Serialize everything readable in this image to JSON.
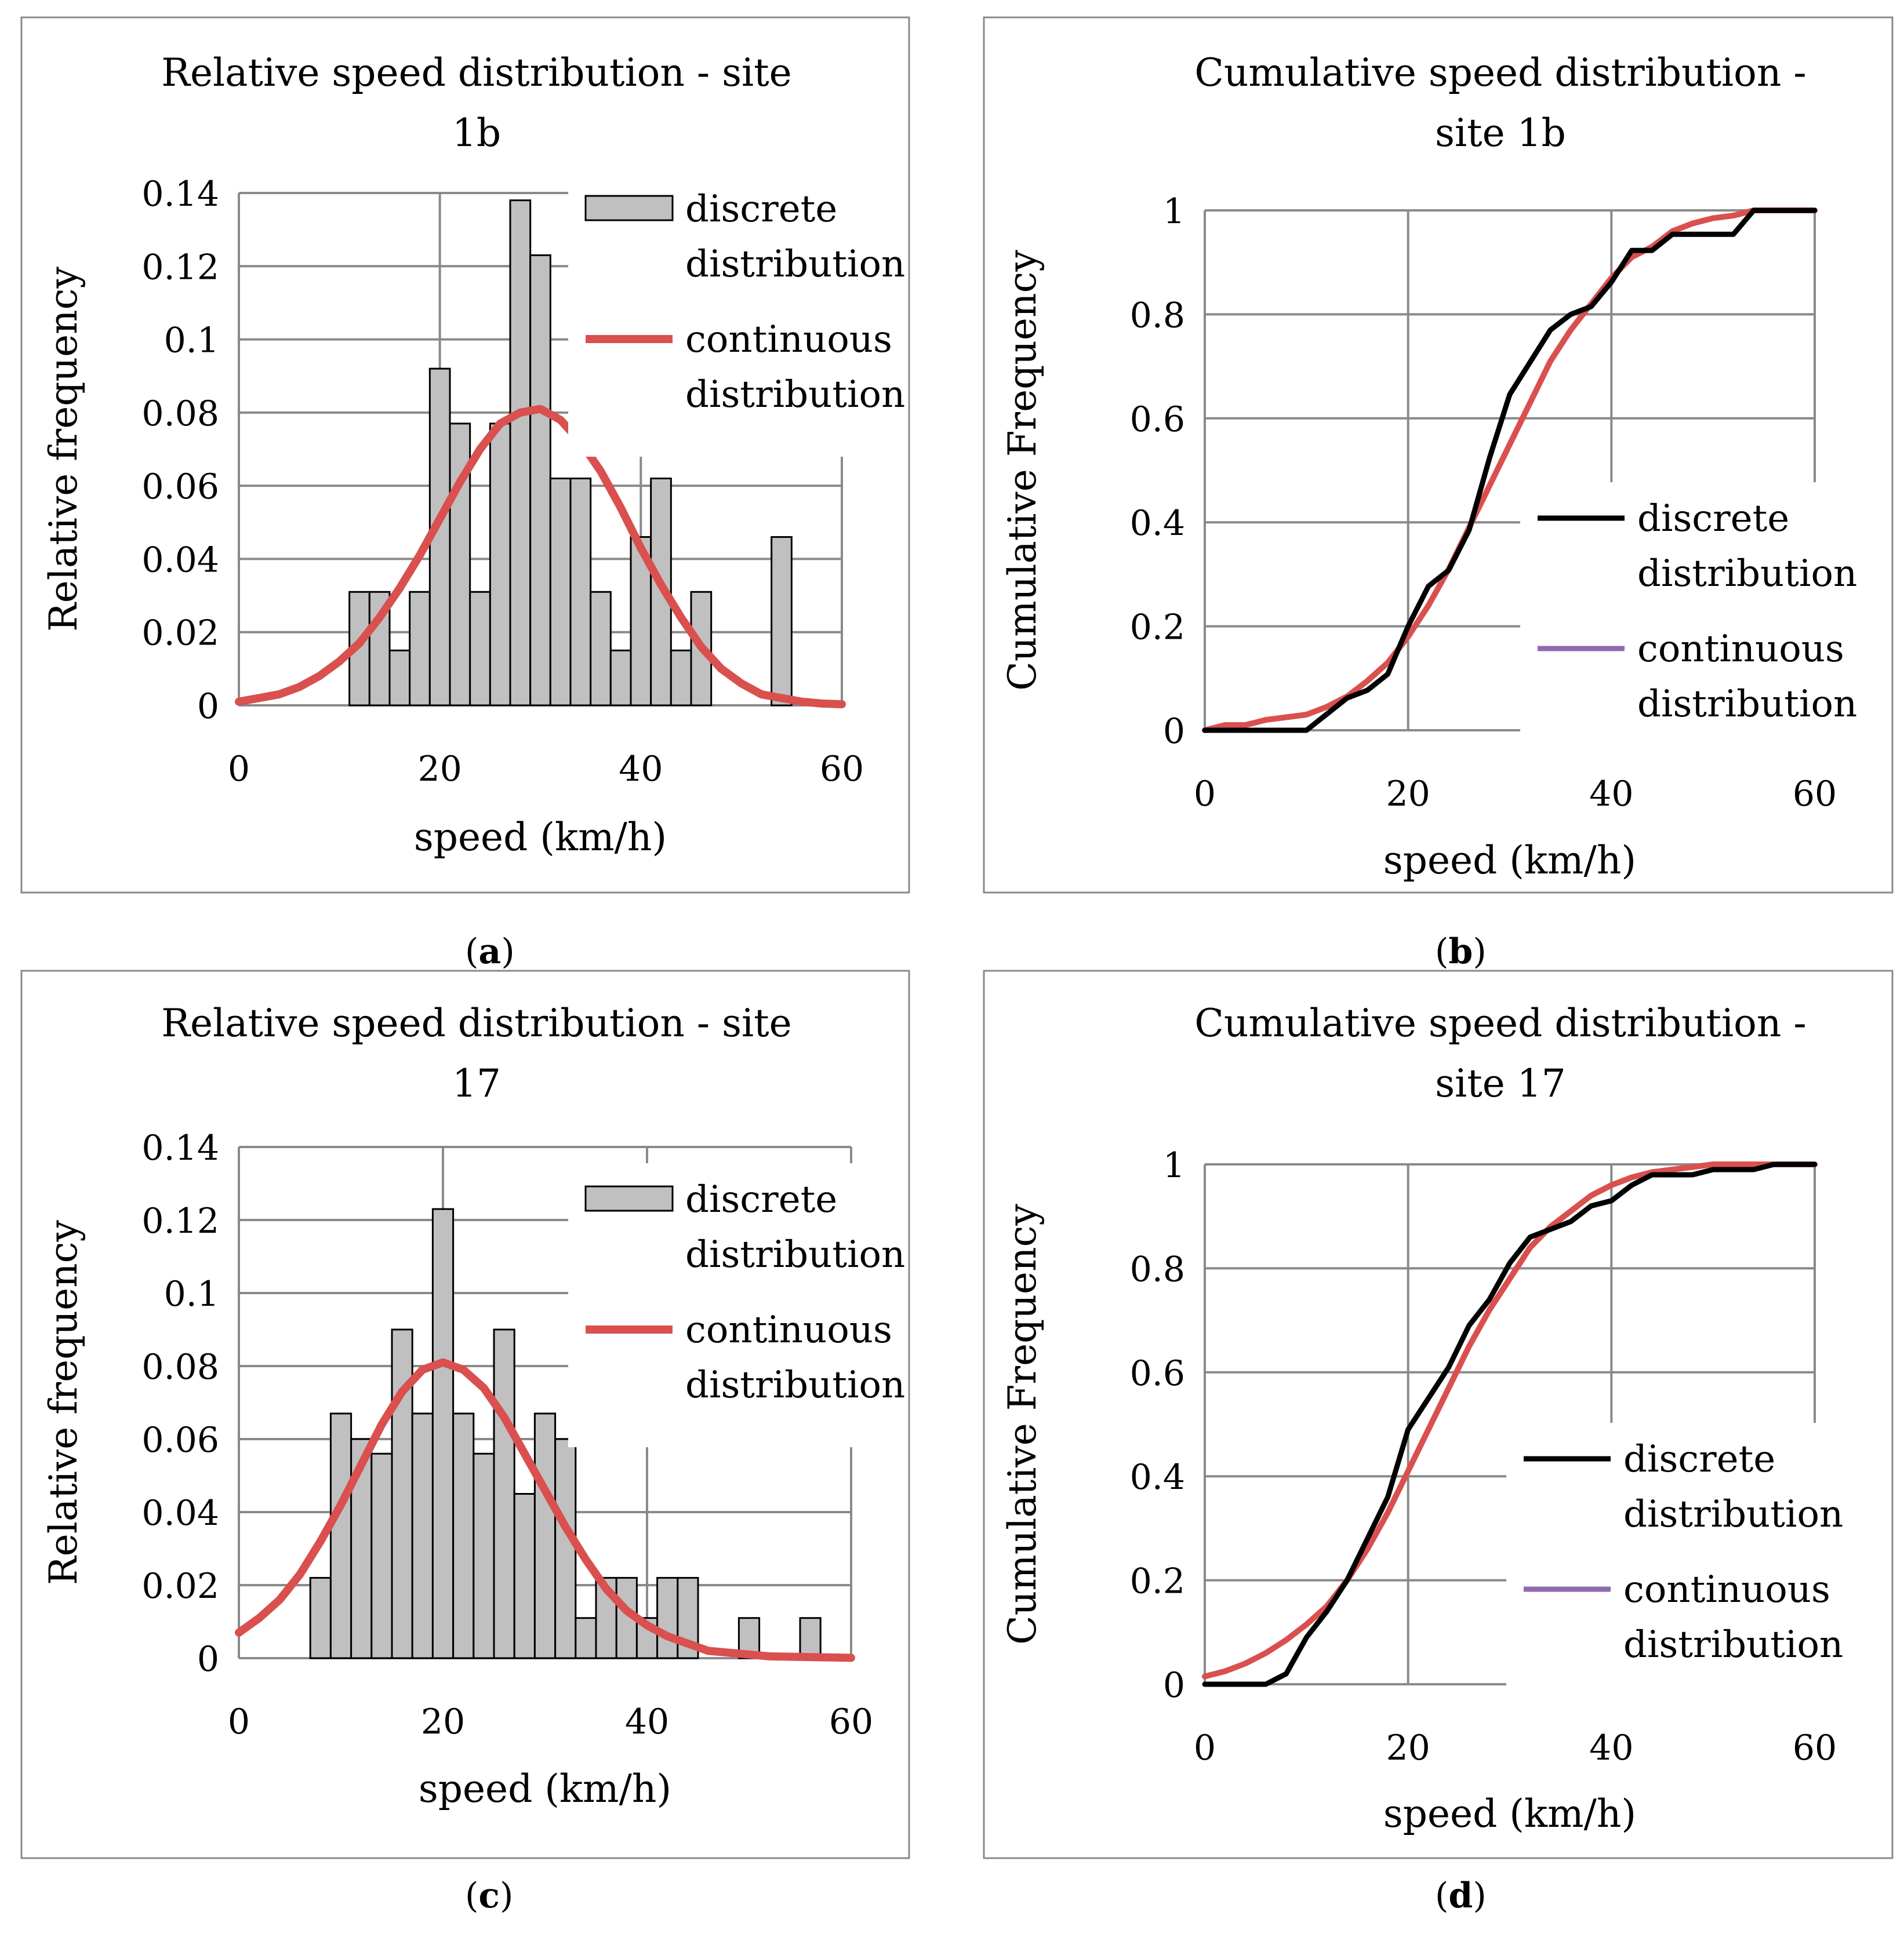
{
  "colors": {
    "bar_fill": "#c0c0c0",
    "bar_stroke": "#000000",
    "discrete_line": "#000000",
    "continuous_line": "#d9504f",
    "legend_purple": "#8e6bb0",
    "grid": "#8a8a8a",
    "frame": "#8a8a8a"
  },
  "chart_data": [
    {
      "id": "a",
      "type": "bar",
      "title_lines": [
        "Relative speed distribution - site",
        "1b"
      ],
      "xlabel": "speed (km/h)",
      "ylabel": "Relative frequency",
      "xlim": [
        0,
        60
      ],
      "ylim": [
        0,
        0.14
      ],
      "xticks": [
        0,
        20,
        40,
        60
      ],
      "yticks": [
        0,
        0.02,
        0.04,
        0.06,
        0.08,
        0.1,
        0.12,
        0.14
      ],
      "ytick_labels": [
        "0",
        "0.02",
        "0.04",
        "0.06",
        "0.08",
        "0.1",
        "0.12",
        "0.14"
      ],
      "grid": true,
      "bin_width": 2,
      "bins_start": [
        11,
        13,
        15,
        17,
        19,
        21,
        23,
        25,
        27,
        29,
        31,
        33,
        35,
        37,
        39,
        41,
        43,
        45,
        47,
        49,
        51,
        53
      ],
      "values": [
        0.031,
        0.031,
        0.015,
        0.031,
        0.092,
        0.077,
        0.031,
        0.077,
        0.138,
        0.123,
        0.062,
        0.062,
        0.031,
        0.015,
        0.046,
        0.062,
        0.015,
        0.031,
        0,
        0,
        0,
        0.046
      ],
      "curve": {
        "x": [
          0,
          2,
          4,
          6,
          8,
          10,
          12,
          14,
          16,
          18,
          20,
          22,
          24,
          26,
          28,
          30,
          32,
          34,
          36,
          38,
          40,
          42,
          44,
          46,
          48,
          50,
          52,
          54,
          56,
          58,
          60
        ],
        "y": [
          0.001,
          0.002,
          0.003,
          0.005,
          0.008,
          0.012,
          0.017,
          0.024,
          0.032,
          0.041,
          0.051,
          0.061,
          0.07,
          0.077,
          0.08,
          0.081,
          0.078,
          0.072,
          0.064,
          0.054,
          0.043,
          0.033,
          0.024,
          0.016,
          0.01,
          0.006,
          0.003,
          0.002,
          0.001,
          0.0005,
          0.0003
        ]
      },
      "legend": [
        {
          "kind": "bar",
          "lines": [
            "discrete",
            "distribution"
          ]
        },
        {
          "kind": "line",
          "color": "#d9504f",
          "lines": [
            "continuous",
            "distribution"
          ]
        }
      ],
      "caption": "a"
    },
    {
      "id": "b",
      "type": "line",
      "title_lines": [
        "Cumulative speed distribution -",
        "site 1b"
      ],
      "xlabel": "speed (km/h)",
      "ylabel": "Cumulative Frequency",
      "xlim": [
        0,
        60
      ],
      "ylim": [
        0,
        1
      ],
      "xticks": [
        0,
        20,
        40,
        60
      ],
      "yticks": [
        0,
        0.2,
        0.4,
        0.6,
        0.8,
        1
      ],
      "ytick_labels": [
        "0",
        "0.2",
        "0.4",
        "0.6",
        "0.8",
        "1"
      ],
      "grid": true,
      "series": [
        {
          "name": "discrete distribution",
          "color": "#000000",
          "x": [
            0,
            2,
            4,
            6,
            8,
            10,
            12,
            14,
            16,
            18,
            20,
            22,
            24,
            26,
            28,
            30,
            32,
            34,
            36,
            38,
            40,
            42,
            44,
            46,
            48,
            50,
            52,
            54,
            56,
            58,
            60
          ],
          "y": [
            0,
            0,
            0,
            0,
            0,
            0,
            0.031,
            0.062,
            0.077,
            0.108,
            0.2,
            0.277,
            0.308,
            0.385,
            0.523,
            0.646,
            0.708,
            0.77,
            0.8,
            0.815,
            0.862,
            0.923,
            0.923,
            0.954,
            0.954,
            0.954,
            0.954,
            1,
            1,
            1,
            1
          ]
        },
        {
          "name": "continuous distribution",
          "color": "#d9504f",
          "x": [
            0,
            2,
            4,
            6,
            8,
            10,
            12,
            14,
            16,
            18,
            20,
            22,
            24,
            26,
            28,
            30,
            32,
            34,
            36,
            38,
            40,
            42,
            44,
            46,
            48,
            50,
            52,
            54,
            56,
            58,
            60
          ],
          "y": [
            0,
            0.01,
            0.01,
            0.02,
            0.025,
            0.03,
            0.045,
            0.065,
            0.095,
            0.13,
            0.18,
            0.24,
            0.31,
            0.39,
            0.47,
            0.55,
            0.63,
            0.71,
            0.77,
            0.82,
            0.87,
            0.91,
            0.93,
            0.96,
            0.975,
            0.985,
            0.99,
            1,
            1,
            1,
            1
          ]
        }
      ],
      "legend": [
        {
          "kind": "line",
          "color": "#000000",
          "lines": [
            "discrete",
            "distribution"
          ]
        },
        {
          "kind": "line",
          "color": "#8e6bb0",
          "lines": [
            "continuous",
            "distribution"
          ]
        }
      ],
      "caption": "b"
    },
    {
      "id": "c",
      "type": "bar",
      "title_lines": [
        "Relative speed distribution - site",
        "17"
      ],
      "xlabel": "speed (km/h)",
      "ylabel": "Relative frequency",
      "xlim": [
        0,
        60
      ],
      "ylim": [
        0,
        0.14
      ],
      "xticks": [
        0,
        20,
        40,
        60
      ],
      "yticks": [
        0,
        0.02,
        0.04,
        0.06,
        0.08,
        0.1,
        0.12,
        0.14
      ],
      "ytick_labels": [
        "0",
        "0.02",
        "0.04",
        "0.06",
        "0.08",
        "0.1",
        "0.12",
        "0.14"
      ],
      "grid": true,
      "bin_width": 2,
      "bins_start": [
        7,
        9,
        11,
        13,
        15,
        17,
        19,
        21,
        23,
        25,
        27,
        29,
        31,
        33,
        35,
        37,
        39,
        41,
        43,
        45,
        47,
        49,
        51,
        53,
        55
      ],
      "values": [
        0.022,
        0.067,
        0.06,
        0.056,
        0.09,
        0.067,
        0.123,
        0.067,
        0.056,
        0.09,
        0.045,
        0.067,
        0.06,
        0.011,
        0.022,
        0.022,
        0.011,
        0.022,
        0.022,
        0,
        0,
        0.011,
        0,
        0,
        0.011
      ],
      "curve": {
        "x": [
          0,
          2,
          4,
          6,
          8,
          10,
          12,
          14,
          16,
          18,
          20,
          22,
          24,
          26,
          28,
          30,
          32,
          34,
          36,
          38,
          40,
          42,
          44,
          46,
          48,
          50,
          52,
          54,
          56,
          58,
          60
        ],
        "y": [
          0.007,
          0.011,
          0.016,
          0.023,
          0.032,
          0.042,
          0.053,
          0.064,
          0.073,
          0.079,
          0.081,
          0.079,
          0.074,
          0.066,
          0.056,
          0.046,
          0.036,
          0.027,
          0.019,
          0.013,
          0.009,
          0.006,
          0.004,
          0.002,
          0.0015,
          0.001,
          0.0005,
          0.0004,
          0.0003,
          0.0002,
          0.0001
        ]
      },
      "legend": [
        {
          "kind": "bar",
          "lines": [
            "discrete",
            "distribution"
          ]
        },
        {
          "kind": "line",
          "color": "#d9504f",
          "lines": [
            "continuous",
            "distribution"
          ]
        }
      ],
      "caption": "c"
    },
    {
      "id": "d",
      "type": "line",
      "title_lines": [
        "Cumulative speed distribution -",
        "site 17"
      ],
      "xlabel": "speed (km/h)",
      "ylabel": "Cumulative Frequency",
      "xlim": [
        0,
        60
      ],
      "ylim": [
        0,
        1
      ],
      "xticks": [
        0,
        20,
        40,
        60
      ],
      "yticks": [
        0,
        0.2,
        0.4,
        0.6,
        0.8,
        1
      ],
      "ytick_labels": [
        "0",
        "0.2",
        "0.4",
        "0.6",
        "0.8",
        "1"
      ],
      "grid": true,
      "series": [
        {
          "name": "discrete distribution",
          "color": "#000000",
          "x": [
            0,
            2,
            4,
            6,
            8,
            10,
            12,
            14,
            16,
            18,
            20,
            22,
            24,
            26,
            28,
            30,
            32,
            34,
            36,
            38,
            40,
            42,
            44,
            46,
            48,
            50,
            52,
            54,
            56,
            58,
            60
          ],
          "y": [
            0,
            0,
            0,
            0,
            0.02,
            0.09,
            0.14,
            0.2,
            0.28,
            0.36,
            0.49,
            0.55,
            0.61,
            0.69,
            0.74,
            0.81,
            0.86,
            0.875,
            0.89,
            0.92,
            0.93,
            0.96,
            0.98,
            0.98,
            0.98,
            0.99,
            0.99,
            0.99,
            1,
            1,
            1
          ]
        },
        {
          "name": "continuous distribution",
          "color": "#d9504f",
          "x": [
            0,
            2,
            4,
            6,
            8,
            10,
            12,
            14,
            16,
            18,
            20,
            22,
            24,
            26,
            28,
            30,
            32,
            34,
            36,
            38,
            40,
            42,
            44,
            46,
            48,
            50,
            52,
            54,
            56,
            58,
            60
          ],
          "y": [
            0.015,
            0.025,
            0.04,
            0.06,
            0.085,
            0.115,
            0.15,
            0.2,
            0.26,
            0.33,
            0.41,
            0.49,
            0.57,
            0.65,
            0.72,
            0.78,
            0.84,
            0.88,
            0.91,
            0.94,
            0.96,
            0.975,
            0.985,
            0.99,
            0.995,
            1,
            1,
            1,
            1,
            1,
            1
          ]
        }
      ],
      "legend": [
        {
          "kind": "line",
          "color": "#000000",
          "lines": [
            "discrete",
            "distribution"
          ]
        },
        {
          "kind": "line",
          "color": "#8e6bb0",
          "lines": [
            "continuous",
            "distribution"
          ]
        }
      ],
      "caption": "d"
    }
  ]
}
